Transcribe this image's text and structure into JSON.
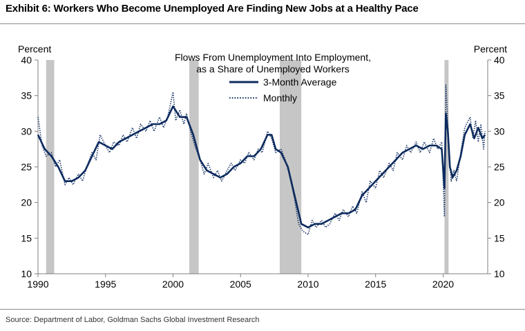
{
  "header": {
    "title": "Exhibit 6: Workers Who Become Unemployed Are Finding New Jobs at a Healthy Pace"
  },
  "footer": {
    "source": "Source: Department of Labor, Goldman Sachs Global Investment Research"
  },
  "chart_data": {
    "type": "line",
    "title": "Flows From Unemployment Into Employment,",
    "subtitle": "as a Share of Unemployed Workers",
    "ylabel_left": "Percent",
    "ylabel_right": "Percent",
    "xlim": [
      1990,
      2023.3
    ],
    "ylim": [
      10,
      40
    ],
    "x_ticks": [
      1990,
      1995,
      2000,
      2005,
      2010,
      2015,
      2020
    ],
    "x_tick_labels": [
      "1990",
      "1995",
      "2000",
      "2005",
      "2010",
      "2015",
      "2020"
    ],
    "y_ticks": [
      10,
      15,
      20,
      25,
      30,
      35,
      40
    ],
    "y_tick_labels": [
      "10",
      "15",
      "20",
      "25",
      "30",
      "35",
      "40"
    ],
    "grid": false,
    "legend": {
      "placement": "top-center",
      "entries": [
        {
          "label": "3-Month Average",
          "style": "solid"
        },
        {
          "label": "Monthly",
          "style": "dotted"
        }
      ]
    },
    "recessions": [
      {
        "start": 1990.6,
        "end": 1991.2
      },
      {
        "start": 2001.2,
        "end": 2001.9
      },
      {
        "start": 2007.9,
        "end": 2009.5
      },
      {
        "start": 2020.1,
        "end": 2020.4
      }
    ],
    "colors": {
      "series": "#0d2b5e",
      "recession": "#c6c6c6",
      "axis": "#7f7f7f"
    },
    "series": [
      {
        "name": "3-Month Average",
        "style": "solid",
        "x": [
          1990.0,
          1990.5,
          1991.0,
          1991.5,
          1992.0,
          1992.5,
          1993.0,
          1993.5,
          1994.0,
          1994.5,
          1995.0,
          1995.5,
          1996.0,
          1996.5,
          1997.0,
          1997.5,
          1998.0,
          1998.5,
          1999.0,
          1999.5,
          2000.0,
          2000.5,
          2001.0,
          2001.5,
          2002.0,
          2002.5,
          2003.0,
          2003.5,
          2004.0,
          2004.5,
          2005.0,
          2005.5,
          2006.0,
          2006.5,
          2007.0,
          2007.3,
          2007.6,
          2008.0,
          2008.5,
          2009.0,
          2009.5,
          2010.0,
          2010.5,
          2011.0,
          2011.5,
          2012.0,
          2012.5,
          2013.0,
          2013.5,
          2014.0,
          2014.5,
          2015.0,
          2015.5,
          2016.0,
          2016.5,
          2017.0,
          2017.5,
          2018.0,
          2018.5,
          2019.0,
          2019.5,
          2019.9,
          2020.1,
          2020.2,
          2020.35,
          2020.5,
          2020.7,
          2021.0,
          2021.3,
          2021.6,
          2022.0,
          2022.3,
          2022.6,
          2022.9,
          2023.1
        ],
        "y": [
          29.5,
          27.5,
          26.5,
          25.0,
          23.0,
          23.0,
          23.5,
          24.5,
          26.5,
          28.5,
          28.0,
          27.5,
          28.5,
          29.0,
          29.5,
          30.0,
          30.5,
          31.0,
          31.0,
          31.5,
          33.5,
          32.0,
          32.0,
          29.5,
          26.0,
          24.5,
          24.0,
          23.5,
          24.0,
          25.0,
          25.5,
          26.5,
          26.5,
          27.5,
          29.5,
          29.5,
          27.5,
          27.0,
          25.0,
          21.0,
          17.0,
          16.5,
          17.0,
          17.0,
          17.5,
          18.0,
          18.5,
          18.5,
          19.0,
          21.0,
          22.0,
          23.0,
          24.0,
          25.0,
          26.0,
          27.0,
          27.5,
          28.0,
          27.5,
          28.0,
          28.0,
          27.5,
          22.0,
          32.5,
          30.0,
          25.0,
          23.5,
          24.5,
          26.5,
          29.5,
          31.0,
          29.0,
          30.5,
          29.0,
          29.5
        ]
      },
      {
        "name": "Monthly",
        "style": "dotted",
        "x": [
          1990.0,
          1990.3,
          1990.6,
          1991.0,
          1991.3,
          1991.6,
          1992.0,
          1992.3,
          1992.6,
          1993.0,
          1993.3,
          1993.6,
          1994.0,
          1994.3,
          1994.6,
          1995.0,
          1995.3,
          1995.6,
          1996.0,
          1996.3,
          1996.6,
          1997.0,
          1997.3,
          1997.6,
          1998.0,
          1998.3,
          1998.6,
          1999.0,
          1999.3,
          1999.6,
          2000.0,
          2000.2,
          2000.5,
          2000.8,
          2001.0,
          2001.3,
          2001.6,
          2002.0,
          2002.3,
          2002.6,
          2003.0,
          2003.3,
          2003.6,
          2004.0,
          2004.3,
          2004.6,
          2005.0,
          2005.3,
          2005.6,
          2006.0,
          2006.3,
          2006.6,
          2007.0,
          2007.3,
          2007.6,
          2008.0,
          2008.3,
          2008.6,
          2009.0,
          2009.3,
          2009.6,
          2010.0,
          2010.3,
          2010.6,
          2011.0,
          2011.3,
          2011.6,
          2012.0,
          2012.3,
          2012.6,
          2013.0,
          2013.3,
          2013.6,
          2014.0,
          2014.3,
          2014.6,
          2015.0,
          2015.3,
          2015.6,
          2016.0,
          2016.3,
          2016.6,
          2017.0,
          2017.3,
          2017.6,
          2018.0,
          2018.3,
          2018.6,
          2019.0,
          2019.3,
          2019.6,
          2019.9,
          2020.1,
          2020.2,
          2020.3,
          2020.45,
          2020.6,
          2020.8,
          2021.0,
          2021.3,
          2021.6,
          2022.0,
          2022.2,
          2022.4,
          2022.6,
          2022.8,
          2023.0,
          2023.1
        ],
        "y": [
          32.0,
          28.0,
          26.5,
          27.0,
          25.0,
          26.0,
          22.5,
          23.5,
          22.5,
          24.0,
          23.0,
          25.0,
          27.0,
          26.0,
          29.5,
          28.0,
          27.0,
          28.5,
          28.0,
          29.5,
          28.5,
          30.5,
          29.0,
          31.0,
          30.0,
          31.5,
          30.0,
          32.0,
          30.5,
          32.0,
          35.5,
          31.5,
          33.0,
          31.0,
          32.5,
          30.0,
          28.0,
          26.0,
          24.0,
          25.5,
          23.5,
          24.5,
          23.0,
          24.5,
          25.5,
          24.5,
          26.0,
          25.5,
          27.0,
          26.0,
          27.5,
          27.0,
          30.0,
          29.0,
          27.0,
          27.5,
          26.0,
          24.0,
          20.5,
          17.0,
          16.0,
          15.5,
          17.5,
          16.5,
          17.5,
          16.5,
          17.0,
          18.5,
          17.5,
          19.0,
          18.0,
          19.5,
          18.5,
          21.5,
          20.0,
          23.0,
          22.0,
          24.5,
          23.5,
          25.5,
          24.5,
          27.0,
          26.0,
          28.0,
          27.0,
          28.5,
          27.0,
          28.5,
          27.0,
          29.0,
          27.5,
          28.5,
          18.0,
          36.5,
          33.0,
          27.0,
          23.0,
          24.5,
          23.0,
          27.0,
          30.5,
          32.0,
          29.0,
          31.5,
          28.5,
          31.0,
          27.5,
          30.0
        ]
      }
    ]
  }
}
